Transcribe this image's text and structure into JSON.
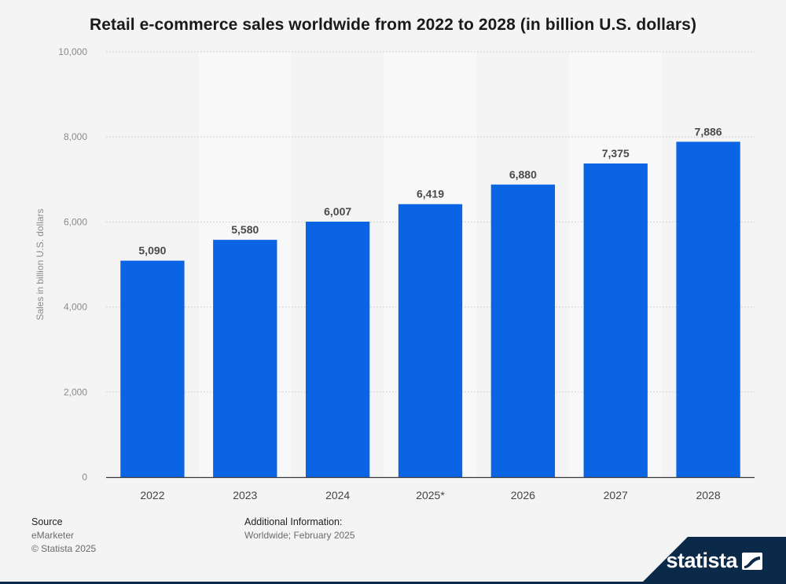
{
  "colors": {
    "bar": "#0b64e3",
    "axis_text": "#8a8a8a",
    "label_text": "#4a4a4a",
    "grid": "#c9c9c9",
    "brand_navy": "#0b2a4a"
  },
  "chart_data": {
    "type": "bar",
    "title": "Retail e-commerce sales worldwide from 2022 to 2028 (in billion U.S. dollars)",
    "xlabel": "",
    "ylabel": "Sales in billion U.S. dollars",
    "categories": [
      "2022",
      "2023",
      "2024",
      "2025*",
      "2026",
      "2027",
      "2028"
    ],
    "values": [
      5090,
      5580,
      6007,
      6419,
      6880,
      7375,
      7886
    ],
    "value_labels": [
      "5,090",
      "5,580",
      "6,007",
      "6,419",
      "6,880",
      "7,375",
      "7,886"
    ],
    "ylim": [
      0,
      10000
    ],
    "yticks": [
      0,
      2000,
      4000,
      6000,
      8000,
      10000
    ],
    "ytick_labels": [
      "0",
      "2,000",
      "4,000",
      "6,000",
      "8,000",
      "10,000"
    ],
    "grid": true,
    "legend": "none"
  },
  "footer": {
    "source_heading": "Source",
    "source_name": "eMarketer",
    "copyright": "© Statista 2025",
    "additional_heading": "Additional Information:",
    "additional_text": "Worldwide; February 2025"
  },
  "brand": {
    "name": "statista",
    "logo_icon": "statista-logo-icon"
  }
}
